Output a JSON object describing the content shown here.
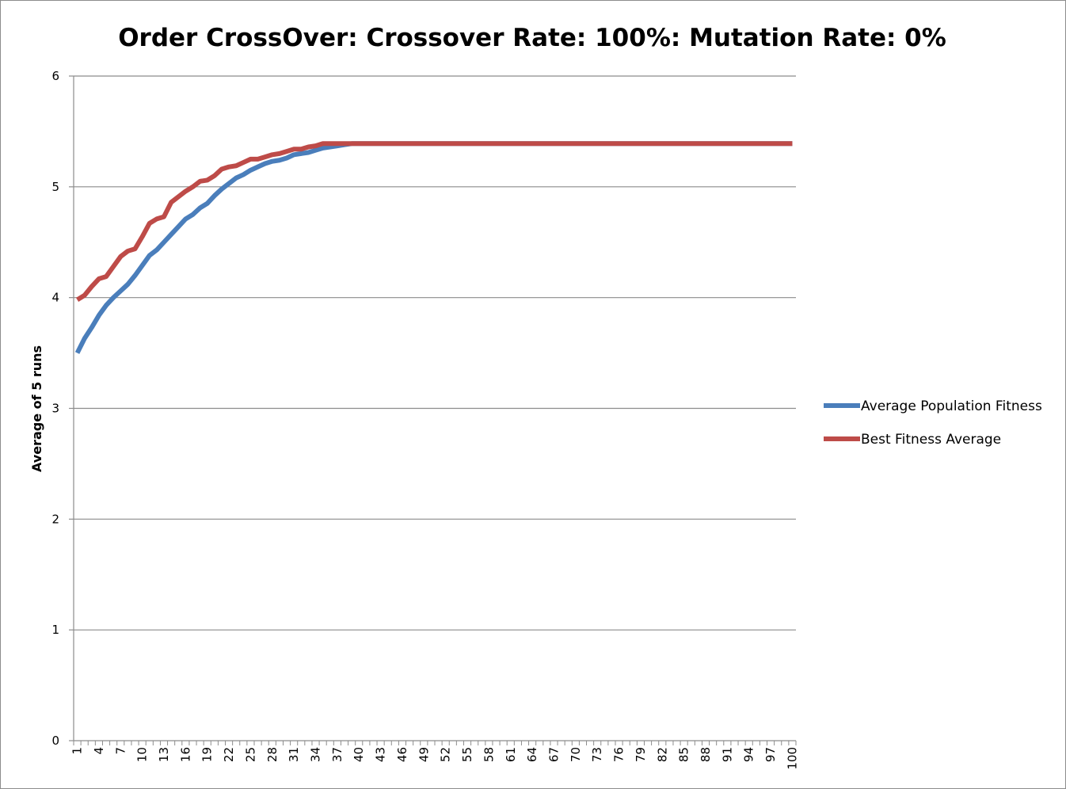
{
  "chart_data": {
    "type": "line",
    "title": "Order CrossOver: Crossover Rate: 100%: Mutation Rate: 0%",
    "xlabel": "",
    "ylabel": "Average of 5 runs",
    "ylim": [
      0,
      6
    ],
    "yticks": [
      "0",
      "1",
      "2",
      "3",
      "4",
      "5",
      "6"
    ],
    "x_start": 1,
    "x_end": 100,
    "x_tick_step": 3,
    "grid": "horizontal",
    "legend_position": "right",
    "series": [
      {
        "name": "Average Population Fitness",
        "color": "#4a7ebb",
        "values": [
          3.5,
          3.63,
          3.73,
          3.84,
          3.93,
          4.0,
          4.06,
          4.12,
          4.2,
          4.29,
          4.38,
          4.43,
          4.5,
          4.57,
          4.64,
          4.71,
          4.75,
          4.81,
          4.85,
          4.92,
          4.98,
          5.03,
          5.08,
          5.11,
          5.15,
          5.18,
          5.21,
          5.23,
          5.24,
          5.26,
          5.29,
          5.3,
          5.31,
          5.33,
          5.35,
          5.36,
          5.37,
          5.38,
          5.39,
          5.39,
          5.39,
          5.39,
          5.39,
          5.39,
          5.39,
          5.39,
          5.39,
          5.39,
          5.39,
          5.39,
          5.39,
          5.39,
          5.39,
          5.39,
          5.39,
          5.39,
          5.39,
          5.39,
          5.39,
          5.39,
          5.39,
          5.39,
          5.39,
          5.39,
          5.39,
          5.39,
          5.39,
          5.39,
          5.39,
          5.39,
          5.39,
          5.39,
          5.39,
          5.39,
          5.39,
          5.39,
          5.39,
          5.39,
          5.39,
          5.39,
          5.39,
          5.39,
          5.39,
          5.39,
          5.39,
          5.39,
          5.39,
          5.39,
          5.39,
          5.39,
          5.39,
          5.39,
          5.39,
          5.39,
          5.39,
          5.39,
          5.39,
          5.39,
          5.39,
          5.39
        ]
      },
      {
        "name": "Best Fitness Average",
        "color": "#be4b48",
        "values": [
          3.98,
          4.02,
          4.1,
          4.17,
          4.19,
          4.28,
          4.37,
          4.42,
          4.44,
          4.55,
          4.67,
          4.71,
          4.73,
          4.86,
          4.91,
          4.96,
          5.0,
          5.05,
          5.06,
          5.1,
          5.16,
          5.18,
          5.19,
          5.22,
          5.25,
          5.25,
          5.27,
          5.29,
          5.3,
          5.32,
          5.34,
          5.34,
          5.36,
          5.37,
          5.39,
          5.39,
          5.39,
          5.39,
          5.39,
          5.39,
          5.39,
          5.39,
          5.39,
          5.39,
          5.39,
          5.39,
          5.39,
          5.39,
          5.39,
          5.39,
          5.39,
          5.39,
          5.39,
          5.39,
          5.39,
          5.39,
          5.39,
          5.39,
          5.39,
          5.39,
          5.39,
          5.39,
          5.39,
          5.39,
          5.39,
          5.39,
          5.39,
          5.39,
          5.39,
          5.39,
          5.39,
          5.39,
          5.39,
          5.39,
          5.39,
          5.39,
          5.39,
          5.39,
          5.39,
          5.39,
          5.39,
          5.39,
          5.39,
          5.39,
          5.39,
          5.39,
          5.39,
          5.39,
          5.39,
          5.39,
          5.39,
          5.39,
          5.39,
          5.39,
          5.39,
          5.39,
          5.39,
          5.39,
          5.39,
          5.39
        ]
      }
    ]
  }
}
